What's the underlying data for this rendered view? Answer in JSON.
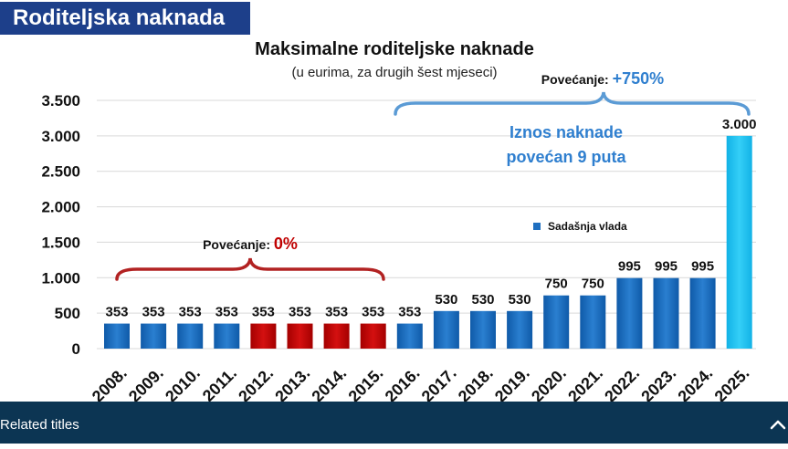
{
  "header": {
    "badge_title": "Roditeljska naknada"
  },
  "chart_data": {
    "type": "bar",
    "title": "Maksimalne roditeljske naknade",
    "subtitle": "(u eurima, za drugih šest mjeseci)",
    "categories": [
      "2008.",
      "2009.",
      "2010.",
      "2011.",
      "2012.",
      "2013.",
      "2014.",
      "2015.",
      "2016.",
      "2017.",
      "2018.",
      "2019.",
      "2020.",
      "2021.",
      "2022.",
      "2023.",
      "2024.",
      "2025."
    ],
    "values": [
      353,
      353,
      353,
      353,
      353,
      353,
      353,
      353,
      353,
      530,
      530,
      530,
      750,
      750,
      995,
      995,
      995,
      3000
    ],
    "data_labels": [
      "353",
      "353",
      "353",
      "353",
      "353",
      "353",
      "353",
      "353",
      "353",
      "530",
      "530",
      "530",
      "750",
      "750",
      "995",
      "995",
      "995",
      "3.000"
    ],
    "ylim": [
      0,
      3500
    ],
    "yticks": [
      0,
      500,
      1000,
      1500,
      2000,
      2500,
      3000,
      3500
    ],
    "ytick_labels": [
      "0",
      "500",
      "1.000",
      "1.500",
      "2.000",
      "2.500",
      "3.000",
      "3.500"
    ],
    "grid": true,
    "legend": {
      "label": "Sadašnja vlada",
      "placement": "right"
    },
    "colors": {
      "blue": "#1f6fc0",
      "red": "#c00000",
      "highlight": "#1ec0ef",
      "brace_red": "#b22222",
      "brace_blue": "#5b9bd5",
      "text_blue": "#2f7fcf"
    },
    "bar_colors": [
      "blue",
      "blue",
      "blue",
      "blue",
      "red",
      "red",
      "red",
      "red",
      "blue",
      "blue",
      "blue",
      "blue",
      "blue",
      "blue",
      "blue",
      "blue",
      "blue",
      "highlight"
    ],
    "annotations": {
      "left_label": "Povećanje: ",
      "left_value": "0%",
      "right_label": "Povećanje: ",
      "right_value": "+750%",
      "note_line1": "Iznos naknade",
      "note_line2": "povećan 9 puta"
    }
  },
  "footer": {
    "label": "Related titles",
    "icon": "chevron-up-icon"
  }
}
